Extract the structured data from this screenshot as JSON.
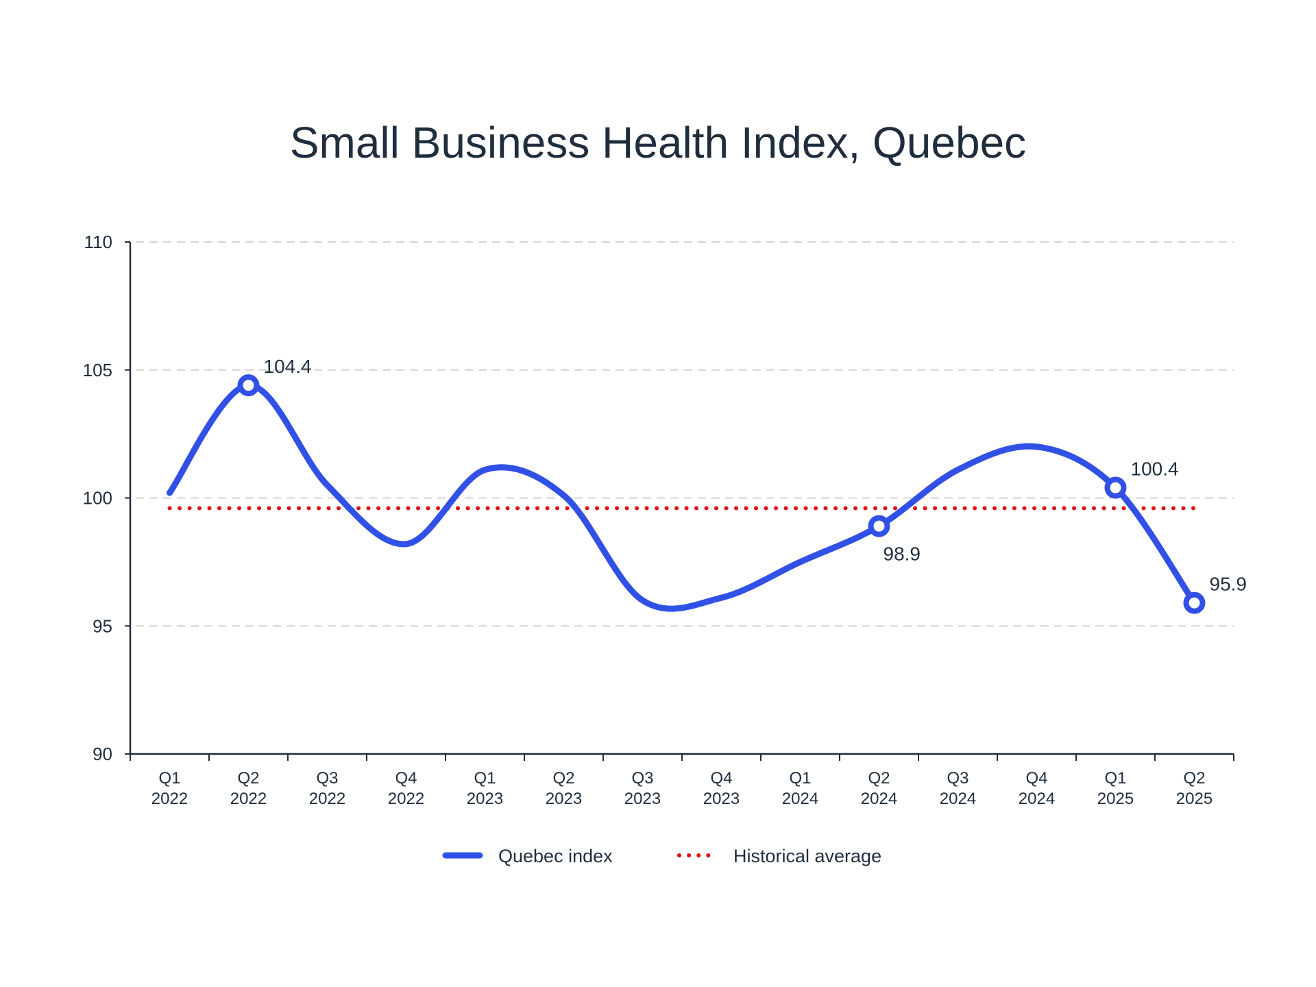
{
  "chart_data": {
    "type": "line",
    "title": "Small Business Health Index, Quebec",
    "xlabel": "",
    "ylabel": "",
    "ylim": [
      90,
      110
    ],
    "yticks": [
      90,
      95,
      100,
      105,
      110
    ],
    "grid": true,
    "legend_position": "bottom-center",
    "categories": [
      [
        "Q1",
        "2022"
      ],
      [
        "Q2",
        "2022"
      ],
      [
        "Q3",
        "2022"
      ],
      [
        "Q4",
        "2022"
      ],
      [
        "Q1",
        "2023"
      ],
      [
        "Q2",
        "2023"
      ],
      [
        "Q3",
        "2023"
      ],
      [
        "Q4",
        "2023"
      ],
      [
        "Q1",
        "2024"
      ],
      [
        "Q2",
        "2024"
      ],
      [
        "Q3",
        "2024"
      ],
      [
        "Q4",
        "2024"
      ],
      [
        "Q1",
        "2025"
      ],
      [
        "Q2",
        "2025"
      ]
    ],
    "series": [
      {
        "name": "Quebec index",
        "color": "#3050e6",
        "style": "solid",
        "values": [
          100.2,
          104.4,
          100.5,
          98.2,
          101.1,
          100.1,
          96.0,
          96.1,
          97.5,
          98.9,
          101.1,
          102.0,
          100.4,
          95.9
        ]
      },
      {
        "name": "Historical average",
        "color": "#dd1111",
        "style": "dotted",
        "value": 99.6
      }
    ],
    "annotations": [
      {
        "index": 1,
        "label": "104.4",
        "position": "above-right"
      },
      {
        "index": 9,
        "label": "98.9",
        "position": "below-right"
      },
      {
        "index": 12,
        "label": "100.4",
        "position": "above-right"
      },
      {
        "index": 13,
        "label": "95.9",
        "position": "above-right"
      }
    ]
  }
}
